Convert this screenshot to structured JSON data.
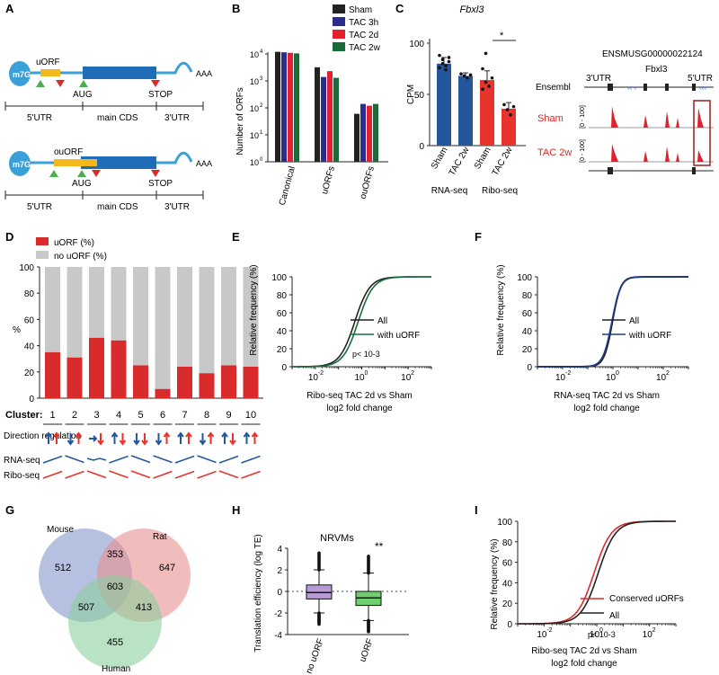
{
  "colors": {
    "sham": "#222222",
    "tac3h": "#2b2d8c",
    "tac2d": "#e3202b",
    "tac2w": "#1a6b3a",
    "cds": "#1f6db6",
    "utr": "#3aa0d8",
    "uorf": "#f4b81d",
    "red": "#d92b2b",
    "green": "#4caf50",
    "grey": "#c8c8c8",
    "rnaBlue": "#23569c",
    "riboRed": "#e8332c",
    "mouse": "#8f9fd3",
    "rat": "#e88f8f",
    "human": "#8ccf9c",
    "box": "#b89ad6",
    "box2": "#6fcf6f"
  },
  "panels": {
    "a": "A",
    "b": "B",
    "c": "C",
    "d": "D",
    "e": "E",
    "f": "F",
    "g": "G",
    "h": "H",
    "i": "I"
  },
  "panelA": {
    "cap": "m7G",
    "uorf": "uORF",
    "ouorf": "ouORF",
    "aug": "AUG",
    "stop": "STOP",
    "aaa": "AAA",
    "utr5": "5'UTR",
    "cds": "main CDS",
    "utr3": "3'UTR"
  },
  "panelB": {
    "chart_data": {
      "type": "bar",
      "yscale": "log",
      "categories": [
        "Canonical",
        "uORFs",
        "ouORFs"
      ],
      "series": [
        {
          "name": "Sham",
          "values": [
            12000,
            3200,
            60
          ]
        },
        {
          "name": "TAC 3h",
          "values": [
            11500,
            1400,
            140
          ]
        },
        {
          "name": "TAC 2d",
          "values": [
            11000,
            2300,
            120
          ]
        },
        {
          "name": "TAC 2w",
          "values": [
            10500,
            1300,
            140
          ]
        }
      ],
      "ylabel": "Number of ORFs",
      "yticks": [
        "10",
        "10",
        "10",
        "10",
        "10"
      ],
      "yexp": [
        "0",
        "1",
        "2",
        "3",
        "4"
      ],
      "ylim": [
        1,
        10000
      ]
    }
  },
  "panelC": {
    "title": "Fbxl3",
    "ylabel": "CPM",
    "yticks": [
      "0",
      "50",
      "100"
    ],
    "chart_data": {
      "type": "bar",
      "categories": [
        "Sham",
        "TAC 2w",
        "Sham",
        "TAC 2w"
      ],
      "groups": [
        "RNA-seq",
        "Ribo-seq"
      ],
      "values": [
        80,
        68,
        64,
        36
      ],
      "ylim": [
        0,
        110
      ]
    },
    "sig": "*",
    "gene_id": "ENSMUSG00000022124",
    "gene": "Fbxl3",
    "utr3": "3'UTR",
    "utr5": "5'UTR",
    "ensembl": "Ensembl",
    "track_sham": "Sham",
    "track_tac": "TAC 2w",
    "range": "[0 - 100]"
  },
  "panelD": {
    "legend": [
      "uORF (%)",
      "no uORF (%)"
    ],
    "ylabel": "%",
    "yticks": [
      "0",
      "20",
      "40",
      "60",
      "80",
      "100"
    ],
    "cluster_label": "Cluster:",
    "chart_data": {
      "type": "bar",
      "stacked": true,
      "categories": [
        "1",
        "2",
        "3",
        "4",
        "5",
        "6",
        "7",
        "8",
        "9",
        "10"
      ],
      "uorf_percent": [
        35,
        31,
        46,
        44,
        25,
        7,
        24,
        19,
        25,
        24
      ],
      "ylim": [
        0,
        100
      ]
    },
    "dir_label": "Direction regulation",
    "rna_label": "RNA-seq",
    "ribo_label": "Ribo-seq"
  },
  "panelE": {
    "ylabel": "Relative frequency (%)",
    "xlabel1": "Ribo-seq TAC 2d vs Sham",
    "xlabel2": "log2 fold change",
    "legend": [
      "All",
      "with uORF"
    ],
    "pval": "p< 10-3",
    "yticks": [
      "0",
      "20",
      "40",
      "60",
      "80",
      "100"
    ],
    "xticks": [
      "10-2",
      "100",
      "102"
    ],
    "chart_data": {
      "type": "line",
      "series": [
        {
          "name": "All",
          "median": 0.5
        },
        {
          "name": "with uORF",
          "median": 0.7
        }
      ]
    }
  },
  "panelF": {
    "ylabel": "Relative frequency (%)",
    "xlabel1": "RNA-seq TAC 2d vs Sham",
    "xlabel2": "log2 fold change",
    "legend": [
      "All",
      "with uORF"
    ],
    "yticks": [
      "0",
      "20",
      "40",
      "60",
      "80",
      "100"
    ],
    "xticks": [
      "10-2",
      "100",
      "102"
    ],
    "chart_data": {
      "type": "line",
      "series": [
        {
          "name": "All",
          "median": 1.0
        },
        {
          "name": "with uORF",
          "median": 0.95
        }
      ]
    }
  },
  "panelG": {
    "labels": [
      "Mouse",
      "Rat",
      "Human"
    ],
    "counts": {
      "m": "512",
      "r": "647",
      "h": "455",
      "mr": "353",
      "mh": "507",
      "rh": "413",
      "all": "603"
    }
  },
  "panelH": {
    "title": "NRVMs",
    "ylabel": "Translation efficiency (log TE)",
    "yticks": [
      "-4",
      "-2",
      "0",
      "2",
      "4"
    ],
    "categories": [
      "no uORF",
      "uORF"
    ],
    "sig": "**",
    "chart_data": {
      "type": "box",
      "categories": [
        "no uORF",
        "uORF"
      ],
      "median": [
        -0.1,
        -0.6
      ],
      "q1": [
        -0.7,
        -1.3
      ],
      "q3": [
        0.6,
        0.0
      ],
      "whisker_low": [
        -2.0,
        -2.7
      ],
      "whisker_high": [
        2.0,
        1.7
      ]
    }
  },
  "panelI": {
    "ylabel": "Relative frequency (%)",
    "xlabel1": "Ribo-seq TAC 2d vs Sham",
    "xlabel2": "log2 fold change",
    "legend": [
      "Conserved uORFs",
      "All"
    ],
    "pval": "p< 10-3",
    "yticks": [
      "0",
      "20",
      "40",
      "60",
      "80",
      "100"
    ],
    "xticks": [
      "10-2",
      "100",
      "102"
    ],
    "chart_data": {
      "type": "line",
      "series": [
        {
          "name": "Conserved uORFs",
          "median": 0.8
        },
        {
          "name": "All",
          "median": 1.1
        }
      ]
    }
  }
}
